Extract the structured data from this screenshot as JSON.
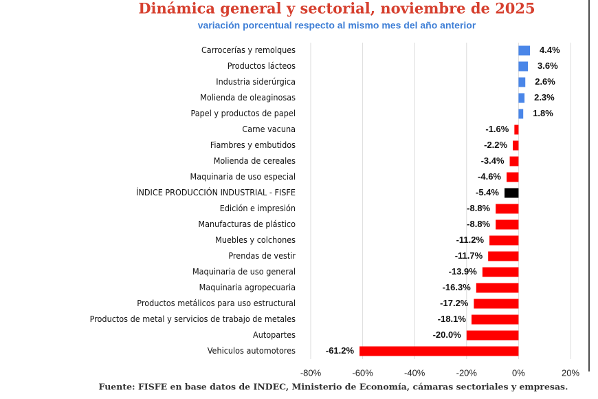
{
  "chart_data": {
    "type": "barh",
    "title": "Dinámica general y sectorial, noviembre de 2025",
    "subtitle": "variación porcentual respecto al mismo mes del  año anterior",
    "source": "Fuente: FISFE en base datos de INDEC, Ministerio de Economía, cámaras sectoriales y empresas.",
    "categories": [
      "Carrocerías y remolques",
      "Productos lácteos",
      "Industria siderúrgica",
      "Molienda de oleaginosas",
      "Papel y productos de papel",
      "Carne vacuna",
      "Fiambres y embutidos",
      "Molienda de cereales",
      "Maquinaria de uso especial",
      "ÍNDICE PRODUCCIÓN INDUSTRIAL - FISFE",
      "Edición e impresión",
      "Manufacturas de plástico",
      "Muebles y colchones",
      "Prendas de vestir",
      "Maquinaria de uso general",
      "Maquinaria agropecuaria",
      "Productos metálicos para uso estructural",
      "Productos de metal y servicios de trabajo de metales",
      "Autopartes",
      "Vehiculos automotores"
    ],
    "values": [
      4.4,
      3.6,
      2.6,
      2.3,
      1.8,
      -1.6,
      -2.2,
      -3.4,
      -4.6,
      -5.4,
      -8.8,
      -8.8,
      -11.2,
      -11.7,
      -13.9,
      -16.3,
      -17.2,
      -18.1,
      -20.0,
      -61.2
    ],
    "value_labels": [
      "4.4%",
      "3.6%",
      "2.6%",
      "2.3%",
      "1.8%",
      "-1.6%",
      "-2.2%",
      "-3.4%",
      "-4.6%",
      "-5.4%",
      "-8.8%",
      "-8.8%",
      "-11.2%",
      "-11.7%",
      "-13.9%",
      "-16.3%",
      "-17.2%",
      "-18.1%",
      "-20.0%",
      "-61.2%"
    ],
    "colors": [
      "#4a86e8",
      "#4a86e8",
      "#4a86e8",
      "#4a86e8",
      "#4a86e8",
      "#ff0000",
      "#ff0000",
      "#ff0000",
      "#ff0000",
      "#000000",
      "#ff0000",
      "#ff0000",
      "#ff0000",
      "#ff0000",
      "#ff0000",
      "#ff0000",
      "#ff0000",
      "#ff0000",
      "#ff0000",
      "#ff0000"
    ],
    "xlim": [
      -80,
      20
    ],
    "xticks": [
      {
        "value": -80,
        "label": "-80%"
      },
      {
        "value": -60,
        "label": "-60%"
      },
      {
        "value": -40,
        "label": "-40%"
      },
      {
        "value": -20,
        "label": "-20%"
      },
      {
        "value": 0,
        "label": "0%"
      },
      {
        "value": 20,
        "label": "20%"
      }
    ],
    "grid": true
  }
}
